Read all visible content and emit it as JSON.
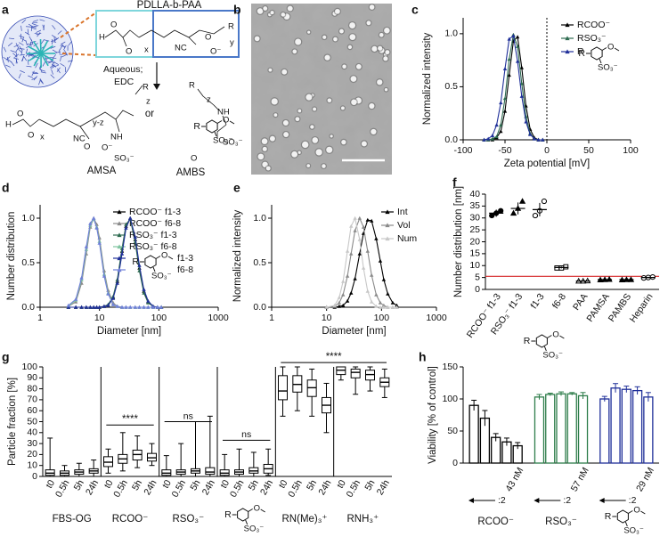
{
  "scheme": {
    "panel": "a",
    "polymer": "PDLLA-b-PAA",
    "conditions": [
      "Aqueous;",
      "EDC"
    ],
    "or": "or",
    "products": [
      "AMSA",
      "AMBS"
    ],
    "atoms": [
      "H",
      "O",
      "O",
      "x",
      "NC",
      "R",
      "y",
      "O",
      "O⁻",
      "H",
      "O",
      "O",
      "x",
      "NC",
      "y-z",
      "O",
      "O⁻",
      "NH",
      "SO₃⁻",
      "R",
      "z",
      "R",
      "z",
      "NH",
      "SO₃⁻",
      "O"
    ]
  },
  "micrograph": {
    "panel": "b"
  },
  "ambs_icon": {
    "r": "R",
    "o": "O",
    "so3": "SO₃⁻"
  },
  "chart_data": [
    {
      "panel": "c",
      "type": "line",
      "xlabel": "Zeta potential [mV]",
      "ylabel": "Normalized intensity",
      "x": [
        -75,
        -70,
        -65,
        -60,
        -55,
        -50,
        -45,
        -40,
        -35,
        -30,
        -25,
        -20,
        -15,
        -10,
        -5
      ],
      "series": [
        {
          "name": "RCOO⁻",
          "color": "#000000",
          "values": [
            0,
            0,
            0,
            0.02,
            0.08,
            0.27,
            0.61,
            0.93,
            0.97,
            0.68,
            0.32,
            0.1,
            0.02,
            0,
            0
          ]
        },
        {
          "name": "RSO₃⁻",
          "color": "#2e6b50",
          "values": [
            0,
            0,
            0.01,
            0.03,
            0.14,
            0.39,
            0.76,
            0.99,
            0.88,
            0.53,
            0.22,
            0.06,
            0.01,
            0,
            0
          ]
        },
        {
          "name": "R",
          "color": "#1f2f99",
          "values": [
            0,
            0.01,
            0.04,
            0.14,
            0.35,
            0.67,
            0.95,
            0.98,
            0.74,
            0.41,
            0.17,
            0.05,
            0.01,
            0,
            0
          ]
        }
      ],
      "xlim": [
        -100,
        100
      ],
      "xticks": [
        -100,
        -50,
        0,
        50,
        100
      ],
      "ylim": [
        0,
        1.15
      ],
      "yticks": [
        {
          "value": 0,
          "label": "0.0"
        },
        {
          "value": 0.5,
          "label": "0.5"
        },
        {
          "value": 1,
          "label": "1.0"
        }
      ],
      "vline": 0,
      "legend": "upper right"
    },
    {
      "panel": "d",
      "type": "line",
      "xlabel": "Diameter [nm]",
      "ylabel": "Number distribution",
      "xscale": "log",
      "x": [
        3,
        4,
        5,
        6,
        7,
        8,
        9,
        10,
        12,
        14,
        17,
        20,
        24,
        28,
        33,
        40,
        47,
        56,
        66,
        80,
        95,
        110
      ],
      "series": [
        {
          "name": "RCOO⁻ f1-3",
          "color": "#000000",
          "values": [
            0,
            0,
            0,
            0,
            0,
            0,
            0,
            0,
            0.01,
            0.02,
            0.11,
            0.29,
            0.63,
            0.91,
            1,
            0.76,
            0.44,
            0.18,
            0.06,
            0.01,
            0,
            0
          ]
        },
        {
          "name": "RCOO⁻ f6-8",
          "color": "#8a8a8a",
          "values": [
            0.01,
            0.06,
            0.27,
            0.6,
            0.9,
            1,
            0.93,
            0.78,
            0.41,
            0.19,
            0.05,
            0.01,
            0,
            0,
            0,
            0,
            0,
            0,
            0,
            0,
            0,
            0
          ]
        },
        {
          "name": "RSO₃⁻ f1-3",
          "color": "#2e6b50",
          "values": [
            0,
            0,
            0,
            0,
            0,
            0,
            0,
            0,
            0.01,
            0.03,
            0.12,
            0.31,
            0.66,
            0.93,
            0.99,
            0.73,
            0.41,
            0.16,
            0.05,
            0.01,
            0,
            0
          ]
        },
        {
          "name": "RSO₃⁻ f6-8",
          "color": "#7fc4a0",
          "values": [
            0.01,
            0.08,
            0.31,
            0.65,
            0.92,
            0.99,
            0.9,
            0.74,
            0.37,
            0.16,
            0.03,
            0.01,
            0,
            0,
            0,
            0,
            0,
            0,
            0,
            0,
            0,
            0
          ]
        },
        {
          "name": "f1-3",
          "color": "#1f2f99",
          "values": [
            0,
            0,
            0,
            0,
            0,
            0,
            0,
            0,
            0.01,
            0.02,
            0.1,
            0.27,
            0.6,
            0.89,
            1,
            0.79,
            0.47,
            0.2,
            0.07,
            0.01,
            0,
            0
          ]
        },
        {
          "name": "f6-8",
          "color": "#6f7fd8",
          "values": [
            0.02,
            0.09,
            0.33,
            0.68,
            0.94,
            1,
            0.89,
            0.72,
            0.35,
            0.15,
            0.03,
            0.01,
            0,
            0,
            0,
            0,
            0,
            0,
            0,
            0,
            0,
            0
          ]
        }
      ],
      "xlim": [
        1,
        1000
      ],
      "xticks": [
        1,
        10,
        100,
        1000
      ],
      "ylim": [
        0,
        1.15
      ],
      "yticks": [
        {
          "value": 0,
          "label": "0.0"
        },
        {
          "value": 0.5,
          "label": "0.5"
        },
        {
          "value": 1,
          "label": "1.0"
        }
      ],
      "legend": "upper right"
    },
    {
      "panel": "e",
      "type": "line",
      "xlabel": "Diameter [nm]",
      "ylabel": "Normalized intensity",
      "xscale": "log",
      "x": [
        10,
        14,
        17,
        20,
        24,
        28,
        33,
        40,
        47,
        56,
        66,
        80,
        95,
        110,
        130,
        160,
        190
      ],
      "series": [
        {
          "name": "Int",
          "color": "#000000",
          "values": [
            0,
            0,
            0.01,
            0.02,
            0.07,
            0.16,
            0.32,
            0.6,
            0.83,
            0.98,
            0.97,
            0.77,
            0.52,
            0.31,
            0.15,
            0.05,
            0.02
          ]
        },
        {
          "name": "Vol",
          "color": "#8a8a8a",
          "values": [
            0,
            0.01,
            0.05,
            0.14,
            0.35,
            0.6,
            0.86,
            1,
            0.9,
            0.63,
            0.36,
            0.14,
            0.05,
            0.02,
            0,
            0,
            0
          ]
        },
        {
          "name": "Num",
          "color": "#c8c8c8",
          "values": [
            0,
            0.02,
            0.11,
            0.29,
            0.63,
            0.91,
            1,
            0.76,
            0.44,
            0.18,
            0.06,
            0.01,
            0,
            0,
            0,
            0,
            0
          ]
        }
      ],
      "xlim": [
        1,
        1000
      ],
      "xticks": [
        1,
        10,
        100,
        1000
      ],
      "ylim": [
        0,
        1.15
      ],
      "yticks": [
        {
          "value": 0,
          "label": "0.0"
        },
        {
          "value": 0.5,
          "label": "0.5"
        },
        {
          "value": 1,
          "label": "1.0"
        }
      ],
      "legend": "upper right"
    },
    {
      "panel": "f",
      "type": "dot",
      "ylabel": "Number distribution [nm]",
      "categories": [
        "RCOO⁻ f1-3",
        "RSO₃⁻ f1-3",
        "f1-3",
        "f6-8",
        "PAA",
        "PAMSA",
        "PAMBS",
        "Heparin"
      ],
      "markers": [
        "circle",
        "triangle",
        "circle-open",
        "square-open",
        "triangle-open",
        "triangle",
        "triangle",
        "circle-open"
      ],
      "points": [
        [
          31,
          32,
          33
        ],
        [
          32,
          34,
          37
        ],
        [
          31,
          33,
          37
        ],
        [
          9,
          9,
          9.5
        ],
        [
          3.5,
          3.5,
          3.6
        ],
        [
          4,
          4.1,
          4.2
        ],
        [
          4,
          4.1,
          4.1
        ],
        [
          4.8,
          5,
          5.2
        ]
      ],
      "means": [
        32,
        34,
        33.5,
        9.2,
        3.5,
        4.1,
        4.1,
        5
      ],
      "errors": [
        1.5,
        2.5,
        2.8,
        0.4,
        0.1,
        0.2,
        0.1,
        0.3
      ],
      "color": "#000000",
      "hline": 5.5,
      "hline_color": "#d62728",
      "ylim": [
        0,
        40
      ],
      "yticks": [
        0,
        5,
        10,
        15,
        20,
        25,
        30,
        35,
        40
      ]
    },
    {
      "panel": "g",
      "type": "box",
      "ylabel": "Particle fraction [%]",
      "groups": [
        "FBS-OG",
        "RCOO⁻",
        "RSO₃⁻",
        null,
        "RN(Me)₃⁺",
        "RNH₃⁺"
      ],
      "timepoints": [
        "t0",
        "0.5h",
        "5h",
        "24h"
      ],
      "boxes": [
        [
          {
            "min": 0,
            "q1": 1,
            "median": 3,
            "q3": 6,
            "max": 35
          },
          {
            "min": 0,
            "q1": 1,
            "median": 3,
            "q3": 5,
            "max": 10
          },
          {
            "min": 0,
            "q1": 2,
            "median": 4,
            "q3": 6,
            "max": 12
          },
          {
            "min": 0,
            "q1": 3,
            "median": 5,
            "q3": 7,
            "max": 15
          }
        ],
        [
          {
            "min": 3,
            "q1": 9,
            "median": 13,
            "q3": 18,
            "max": 25
          },
          {
            "min": 5,
            "q1": 12,
            "median": 16,
            "q3": 20,
            "max": 40
          },
          {
            "min": 8,
            "q1": 15,
            "median": 20,
            "q3": 24,
            "max": 37
          },
          {
            "min": 10,
            "q1": 14,
            "median": 17,
            "q3": 21,
            "max": 30
          }
        ],
        [
          {
            "min": 0,
            "q1": 1,
            "median": 3,
            "q3": 6,
            "max": 19
          },
          {
            "min": 0,
            "q1": 2,
            "median": 4,
            "q3": 6,
            "max": 30
          },
          {
            "min": 0,
            "q1": 3,
            "median": 5,
            "q3": 7,
            "max": 50
          },
          {
            "min": 0,
            "q1": 2,
            "median": 4,
            "q3": 8,
            "max": 55
          }
        ],
        [
          {
            "min": 0,
            "q1": 1,
            "median": 3,
            "q3": 6,
            "max": 20
          },
          {
            "min": 0,
            "q1": 2,
            "median": 4,
            "q3": 6,
            "max": 25
          },
          {
            "min": 0,
            "q1": 3,
            "median": 5,
            "q3": 8,
            "max": 22
          },
          {
            "min": 1,
            "q1": 3,
            "median": 7,
            "q3": 11,
            "max": 25
          }
        ],
        [
          {
            "min": 55,
            "q1": 70,
            "median": 78,
            "q3": 92,
            "max": 100
          },
          {
            "min": 60,
            "q1": 77,
            "median": 84,
            "q3": 92,
            "max": 100
          },
          {
            "min": 55,
            "q1": 73,
            "median": 81,
            "q3": 88,
            "max": 98
          },
          {
            "min": 40,
            "q1": 58,
            "median": 65,
            "q3": 72,
            "max": 85
          }
        ],
        [
          {
            "min": 88,
            "q1": 93,
            "median": 97,
            "q3": 100,
            "max": 100
          },
          {
            "min": 75,
            "q1": 90,
            "median": 95,
            "q3": 98,
            "max": 100
          },
          {
            "min": 78,
            "q1": 88,
            "median": 93,
            "q3": 97,
            "max": 100
          },
          {
            "min": 72,
            "q1": 82,
            "median": 86,
            "q3": 90,
            "max": 98
          }
        ]
      ],
      "color": "#000000",
      "annotations": [
        "****",
        "ns",
        "ns",
        "****"
      ],
      "ylim": [
        0,
        100
      ],
      "yticks": [
        0,
        10,
        20,
        30,
        40,
        50,
        60,
        70,
        80,
        90,
        100
      ]
    },
    {
      "panel": "h",
      "type": "bar",
      "ylabel": "Viability [% of control]",
      "dilution": ":2",
      "groups": [
        {
          "name": "RCOO⁻",
          "color": "#000000",
          "start": "43 nM",
          "values": [
            90,
            70,
            40,
            33,
            27
          ],
          "errors": [
            8,
            12,
            6,
            6,
            5
          ]
        },
        {
          "name": "RSO₃⁻",
          "color": "#2e7d4a",
          "start": "57 nM",
          "values": [
            103,
            107,
            108,
            108,
            105
          ],
          "errors": [
            4,
            2,
            3,
            2,
            5
          ]
        },
        {
          "name": null,
          "color": "#1f2f99",
          "start": "29 nM",
          "values": [
            100,
            117,
            115,
            113,
            103
          ],
          "errors": [
            4,
            7,
            5,
            6,
            7
          ]
        }
      ],
      "ylim": [
        0,
        150
      ],
      "yticks": [
        0,
        50,
        100,
        150
      ]
    }
  ]
}
